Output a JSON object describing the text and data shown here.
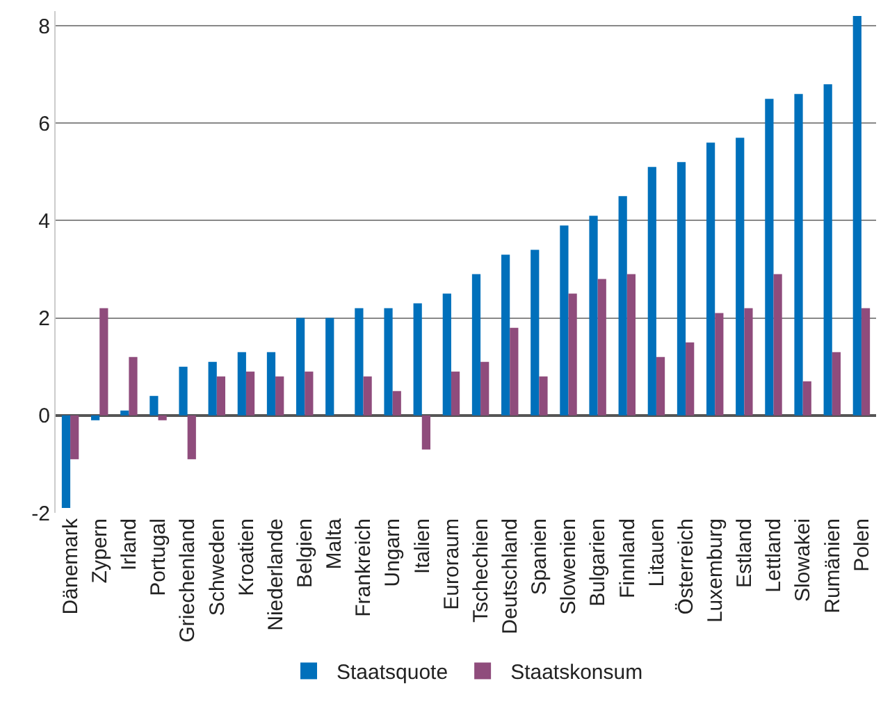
{
  "chart_data": {
    "type": "bar",
    "categories": [
      "Dänemark",
      "Zypern",
      "Irland",
      "Portugal",
      "Griechenland",
      "Schweden",
      "Kroatien",
      "Niederlande",
      "Belgien",
      "Malta",
      "Frankreich",
      "Ungarn",
      "Italien",
      "Euroraum",
      "Tschechien",
      "Deutschland",
      "Spanien",
      "Slowenien",
      "Bulgarien",
      "Finnland",
      "Litauen",
      "Österreich",
      "Luxemburg",
      "Estland",
      "Lettland",
      "Slowakei",
      "Rumänien",
      "Polen"
    ],
    "series": [
      {
        "name": "Staatsquote",
        "color": "#0070bb",
        "values": [
          -1.9,
          -0.1,
          0.1,
          0.4,
          1.0,
          1.1,
          1.3,
          1.3,
          2.0,
          2.0,
          2.2,
          2.2,
          2.3,
          2.5,
          2.9,
          3.3,
          3.4,
          3.9,
          4.1,
          4.5,
          5.1,
          5.2,
          5.6,
          5.7,
          6.5,
          6.6,
          6.8,
          8.2
        ]
      },
      {
        "name": "Staatskonsum",
        "color": "#8f4c7c",
        "values": [
          -0.9,
          2.2,
          1.2,
          -0.1,
          -0.9,
          0.8,
          0.9,
          0.8,
          0.9,
          0.0,
          0.8,
          0.5,
          -0.7,
          0.9,
          1.1,
          1.8,
          0.8,
          2.5,
          2.8,
          2.9,
          1.2,
          1.5,
          2.1,
          2.2,
          2.9,
          0.7,
          1.3,
          2.2
        ]
      }
    ],
    "ylim": [
      -2,
      8.3
    ],
    "yticks": [
      -2,
      0,
      2,
      4,
      6,
      8
    ],
    "grid": "y",
    "legend": "bottom"
  }
}
